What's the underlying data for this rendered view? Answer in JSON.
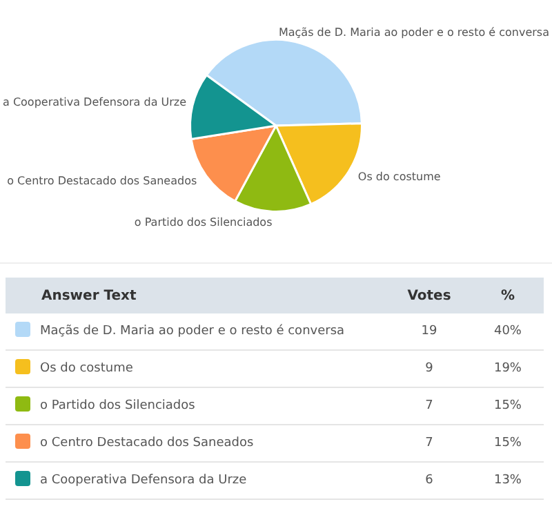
{
  "chart_data": {
    "type": "pie",
    "categories": [
      "Maçãs de D. Maria ao poder e o resto é conversa",
      "Os do costume",
      "o Partido dos Silenciados",
      "o Centro Destacado dos Saneados",
      "a Cooperativa Defensora da Urze"
    ],
    "values": [
      19,
      9,
      7,
      7,
      6
    ],
    "colors": [
      "#b3d9f7",
      "#f5bf1e",
      "#8fba12",
      "#fd8f4d",
      "#139490"
    ],
    "data_labels": true,
    "annotations": [
      "Answer Text",
      "Votes",
      "%",
      "40%",
      "19%",
      "15%",
      "15%",
      "13%"
    ],
    "legend": "bottom"
  }
}
